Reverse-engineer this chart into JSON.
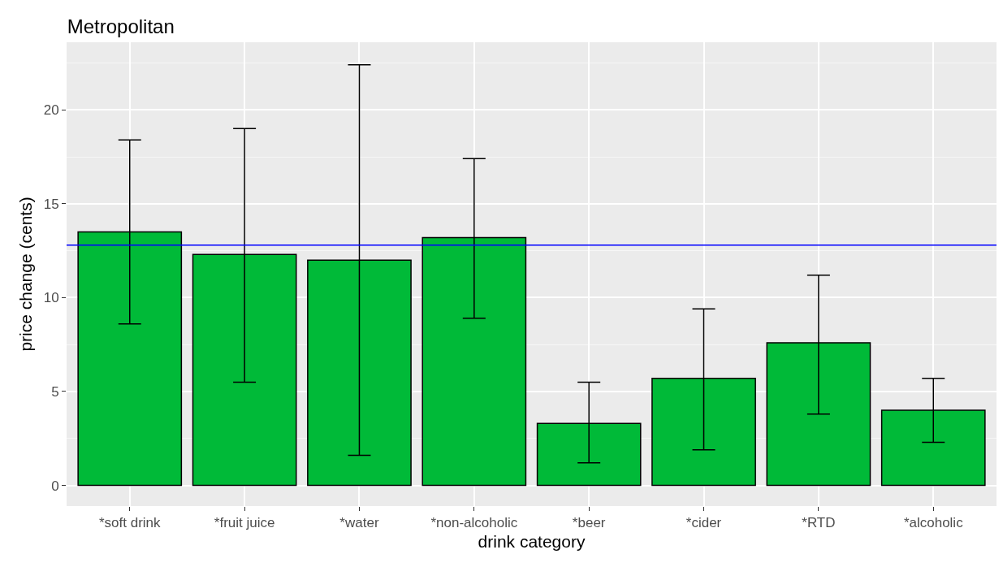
{
  "chart_data": {
    "type": "bar",
    "title": "Metropolitan",
    "xlabel": "drink category",
    "ylabel": "price change (cents)",
    "categories": [
      "*soft drink",
      "*fruit juice",
      "*water",
      "*non-alcoholic",
      "*beer",
      "*cider",
      "*RTD",
      "*alcoholic"
    ],
    "values": [
      13.5,
      12.3,
      12.0,
      13.2,
      3.3,
      5.7,
      7.6,
      4.0
    ],
    "errors": [
      [
        8.6,
        18.4
      ],
      [
        5.5,
        19.0
      ],
      [
        1.6,
        22.4
      ],
      [
        8.9,
        17.4
      ],
      [
        1.2,
        5.5
      ],
      [
        1.9,
        9.4
      ],
      [
        3.8,
        11.2
      ],
      [
        2.3,
        5.7
      ]
    ],
    "color": "#00ba38",
    "ylim": [
      -1.1,
      23.6
    ],
    "yticks": [
      0,
      5,
      10,
      15,
      20
    ],
    "grid": true,
    "ref_lines": [
      {
        "axis": "y",
        "value": 12.8,
        "color": "#0000ff"
      }
    ]
  }
}
